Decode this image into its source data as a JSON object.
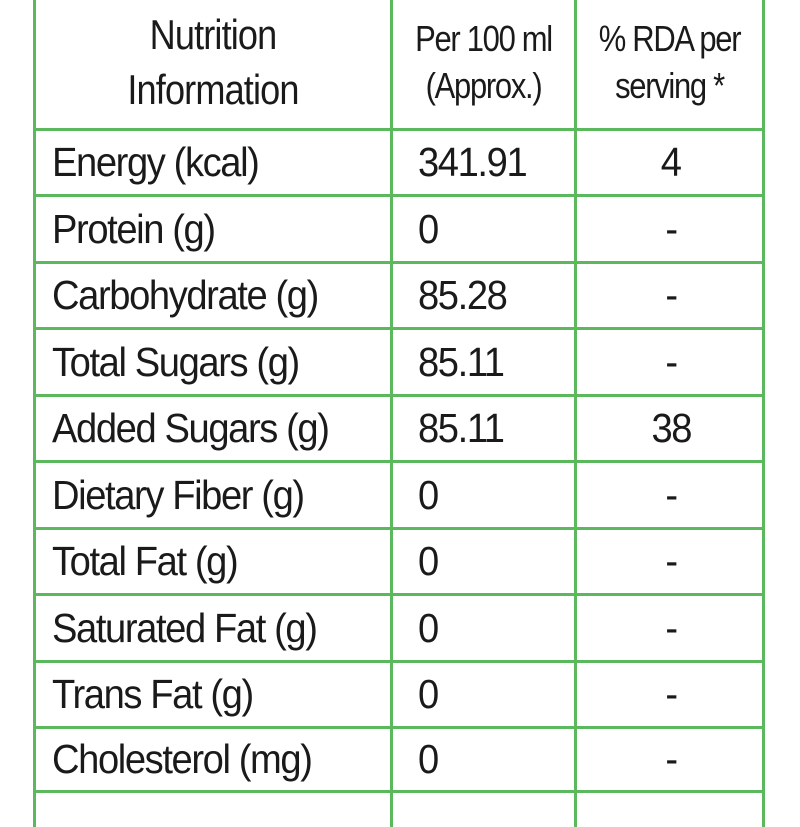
{
  "header": {
    "col1_line1": "Nutrition",
    "col1_line2": "Information",
    "col2_line1": "Per 100 ml",
    "col2_line2": "(Approx.)",
    "col3_line1": "% RDA per",
    "col3_line2": "serving *"
  },
  "rows": [
    {
      "name": "Energy (kcal)",
      "per100": "341.91",
      "rda": "4"
    },
    {
      "name": "Protein (g)",
      "per100": "0",
      "rda": "-"
    },
    {
      "name": "Carbohydrate (g)",
      "per100": "85.28",
      "rda": "-"
    },
    {
      "name": "Total Sugars (g)",
      "per100": "85.11",
      "rda": "-"
    },
    {
      "name": "Added Sugars (g)",
      "per100": "85.11",
      "rda": "38"
    },
    {
      "name": "Dietary Fiber (g)",
      "per100": "0",
      "rda": "-"
    },
    {
      "name": "Total Fat (g)",
      "per100": "0",
      "rda": "-"
    },
    {
      "name": "Saturated Fat (g)",
      "per100": "0",
      "rda": "-"
    },
    {
      "name": "Trans Fat (g)",
      "per100": "0",
      "rda": "-"
    },
    {
      "name": "Cholesterol (mg)",
      "per100": "0",
      "rda": "-"
    }
  ],
  "colors": {
    "border": "#5cb85c",
    "text": "#1a1a1a",
    "background": "#ffffff"
  }
}
